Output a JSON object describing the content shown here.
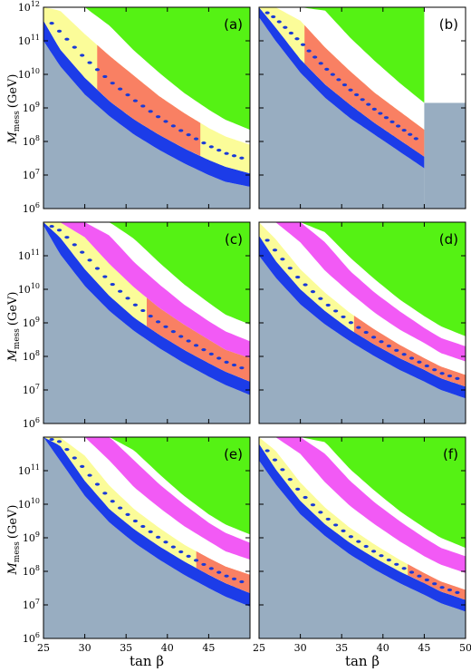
{
  "figure": {
    "ylabel": "M",
    "ylabel_sub": "mess",
    "ylabel_unit": "(GeV)",
    "xlabel": "tan β",
    "colors": {
      "background": "#ffffff",
      "excluded_gray": "#98adc1",
      "blue": "#1c3ce8",
      "blue_dots": "#1a3ad6",
      "yellow": "#fbfc99",
      "orange": "#f98063",
      "magenta": "#f25af5",
      "green": "#55f214",
      "white": "#ffffff"
    }
  },
  "chart_data": [
    {
      "panel": "(a)",
      "type": "area",
      "xlim": [
        25,
        50
      ],
      "ylim_log10": [
        6,
        12
      ],
      "yticks": [
        "10^6",
        "10^7",
        "10^8",
        "10^9",
        "10^10",
        "10^11",
        "10^12"
      ],
      "xticks": [],
      "region_x": [
        25,
        27,
        30,
        33,
        36,
        39,
        42,
        45,
        47,
        50
      ],
      "boundaries_log10": {
        "gray_top": [
          11.0,
          10.25,
          9.4,
          8.75,
          8.2,
          7.75,
          7.35,
          7.0,
          6.8,
          6.65
        ],
        "blue_top": [
          11.6,
          10.75,
          9.9,
          9.2,
          8.65,
          8.2,
          7.8,
          7.45,
          7.25,
          7.05
        ],
        "yellow_top": [
          12.0,
          11.9,
          11.2,
          10.55,
          9.95,
          9.35,
          8.85,
          8.4,
          8.15,
          7.9
        ],
        "green_bottom": [
          12.0,
          12.0,
          12.0,
          11.45,
          10.7,
          10.05,
          9.45,
          8.95,
          8.65,
          8.35
        ]
      },
      "orange_x": [
        31.5,
        44
      ],
      "yellow_upper_x": [
        44,
        50
      ]
    },
    {
      "panel": "(b)",
      "type": "area",
      "xlim": [
        25,
        50
      ],
      "ylim_log10": [
        6,
        12
      ],
      "yticks": [],
      "xticks": [],
      "region_x": [
        25,
        27,
        30,
        33,
        36,
        39,
        42,
        45
      ],
      "boundaries_log10": {
        "gray_top": [
          11.7,
          11.0,
          10.05,
          9.3,
          8.7,
          8.2,
          7.7,
          7.2
        ],
        "blue_top": [
          12.0,
          11.4,
          10.45,
          9.7,
          9.1,
          8.55,
          8.05,
          7.55
        ],
        "yellow_top": [
          12.0,
          12.0,
          11.6,
          10.8,
          10.1,
          9.45,
          8.9,
          8.35
        ],
        "green_bottom": [
          12.0,
          12.0,
          12.0,
          11.9,
          11.1,
          10.4,
          9.75,
          9.15
        ]
      },
      "orange_x": [
        30.5,
        45
      ]
    },
    {
      "panel": "(c)",
      "type": "area",
      "xlim": [
        25,
        50
      ],
      "ylim_log10": [
        6,
        12
      ],
      "yticks": [
        "10^6",
        "10^7",
        "10^8",
        "10^9",
        "10^10",
        "10^11"
      ],
      "xticks": [],
      "region_x": [
        25,
        27,
        30,
        33,
        36,
        39,
        42,
        45,
        47,
        50
      ],
      "boundaries_log10": {
        "gray_top": [
          11.9,
          11.05,
          10.1,
          9.35,
          8.75,
          8.25,
          7.8,
          7.4,
          7.15,
          6.85
        ],
        "blue_top": [
          12.0,
          11.55,
          10.6,
          9.8,
          9.15,
          8.65,
          8.2,
          7.8,
          7.55,
          7.25
        ],
        "yellow_top": [
          12.0,
          12.0,
          11.55,
          10.75,
          10.05,
          9.45,
          8.95,
          8.5,
          8.2,
          7.95
        ],
        "magenta_top": [
          12.0,
          12.0,
          12.0,
          11.6,
          10.8,
          10.15,
          9.55,
          9.05,
          8.75,
          8.45
        ],
        "green_bottom": [
          12.0,
          12.0,
          12.0,
          12.0,
          11.5,
          10.8,
          10.15,
          9.6,
          9.25,
          8.95
        ]
      },
      "orange_x": [
        37.5,
        50
      ]
    },
    {
      "panel": "(d)",
      "type": "area",
      "xlim": [
        25,
        50
      ],
      "ylim_log10": [
        6,
        12
      ],
      "yticks": [],
      "xticks": [],
      "region_x": [
        25,
        27,
        30,
        33,
        36,
        39,
        42,
        45,
        47,
        50
      ],
      "boundaries_log10": {
        "gray_top": [
          11.0,
          10.35,
          9.55,
          8.95,
          8.45,
          8.0,
          7.6,
          7.25,
          7.0,
          6.75
        ],
        "blue_top": [
          11.6,
          10.85,
          10.0,
          9.35,
          8.8,
          8.35,
          7.95,
          7.6,
          7.35,
          7.1
        ],
        "yellow_top": [
          12.0,
          11.5,
          10.6,
          9.9,
          9.3,
          8.8,
          8.35,
          7.95,
          7.7,
          7.45
        ],
        "white_top": [
          12.0,
          12.0,
          11.4,
          10.55,
          9.9,
          9.3,
          8.8,
          8.4,
          8.1,
          7.85
        ],
        "magenta_top": [
          12.0,
          12.0,
          12.0,
          11.4,
          10.55,
          9.9,
          9.35,
          8.85,
          8.55,
          8.3
        ],
        "green_bottom": [
          12.0,
          12.0,
          12.0,
          11.7,
          10.95,
          10.3,
          9.7,
          9.2,
          8.9,
          8.6
        ]
      },
      "orange_x": [
        36.5,
        50
      ]
    },
    {
      "panel": "(e)",
      "type": "area",
      "xlim": [
        25,
        50
      ],
      "ylim_log10": [
        6,
        12
      ],
      "yticks": [
        "10^6",
        "10^7",
        "10^8",
        "10^9",
        "10^10",
        "10^11"
      ],
      "xticks": [
        "25",
        "30",
        "35",
        "40",
        "45"
      ],
      "region_x": [
        25,
        27,
        30,
        33,
        36,
        39,
        42,
        45,
        47,
        50
      ],
      "boundaries_log10": {
        "gray_top": [
          12.0,
          11.3,
          10.25,
          9.45,
          8.85,
          8.35,
          7.9,
          7.5,
          7.25,
          6.95
        ],
        "blue_top": [
          12.0,
          11.75,
          10.7,
          9.85,
          9.25,
          8.75,
          8.3,
          7.9,
          7.65,
          7.35
        ],
        "yellow_top": [
          12.0,
          12.0,
          11.45,
          10.55,
          9.85,
          9.3,
          8.8,
          8.4,
          8.15,
          7.9
        ],
        "white_top": [
          12.0,
          12.0,
          12.0,
          11.3,
          10.5,
          9.9,
          9.35,
          8.9,
          8.6,
          8.35
        ],
        "magenta_top": [
          12.0,
          12.0,
          12.0,
          12.0,
          11.3,
          10.6,
          10.0,
          9.45,
          9.15,
          8.85
        ],
        "green_bottom": [
          12.0,
          12.0,
          12.0,
          12.0,
          11.6,
          10.9,
          10.25,
          9.7,
          9.4,
          9.1
        ]
      },
      "orange_x": [
        43.5,
        50
      ]
    },
    {
      "panel": "(f)",
      "type": "area",
      "xlim": [
        25,
        50
      ],
      "ylim_log10": [
        6,
        12
      ],
      "yticks": [],
      "xticks": [
        "25",
        "30",
        "35",
        "40",
        "45",
        "50"
      ],
      "region_x": [
        25,
        27,
        30,
        33,
        36,
        39,
        42,
        45,
        47,
        50
      ],
      "boundaries_log10": {
        "gray_top": [
          11.3,
          10.6,
          9.7,
          9.05,
          8.5,
          8.05,
          7.65,
          7.3,
          7.05,
          6.8
        ],
        "blue_top": [
          11.8,
          11.05,
          10.1,
          9.4,
          8.85,
          8.4,
          8.0,
          7.65,
          7.4,
          7.15
        ],
        "yellow_top": [
          12.0,
          11.6,
          10.65,
          9.9,
          9.3,
          8.8,
          8.35,
          7.95,
          7.7,
          7.45
        ],
        "white_top": [
          12.0,
          12.0,
          11.5,
          10.65,
          9.95,
          9.4,
          8.9,
          8.45,
          8.2,
          7.95
        ],
        "magenta_top": [
          12.0,
          12.0,
          12.0,
          11.5,
          10.7,
          10.05,
          9.5,
          9.0,
          8.7,
          8.45
        ],
        "green_bottom": [
          12.0,
          12.0,
          12.0,
          11.85,
          11.05,
          10.4,
          9.8,
          9.3,
          9.0,
          8.7
        ]
      },
      "orange_x": [
        43,
        50
      ]
    }
  ]
}
